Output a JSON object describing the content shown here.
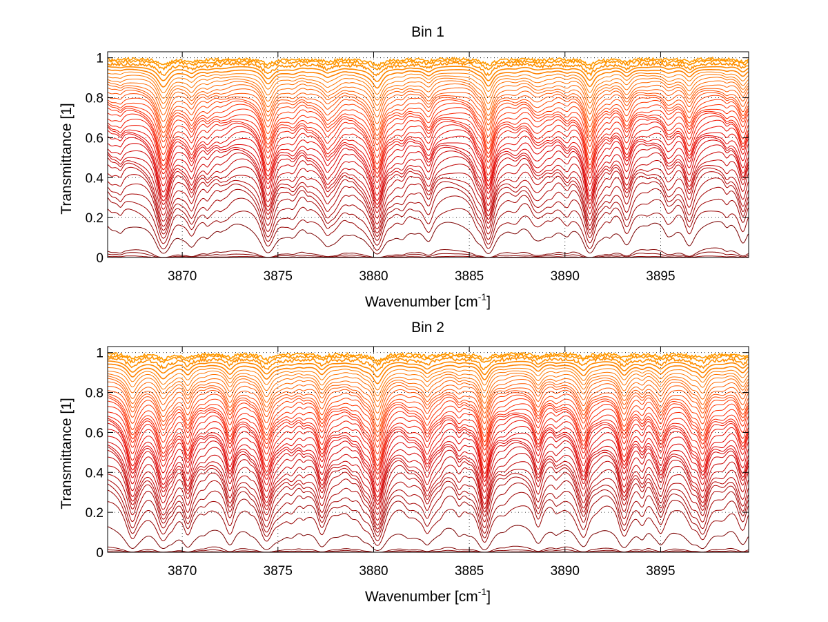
{
  "chart_data": [
    {
      "type": "line",
      "title": "Bin 1",
      "xlabel": "Wavenumber [cm",
      "xlabel_sup": "-1",
      "xlabel_end": "]",
      "ylabel": "Transmittance [1]",
      "xlim": [
        3866.1,
        3899.6
      ],
      "ylim": [
        0,
        1.03
      ],
      "xticks": [
        "3870",
        "3875",
        "3880",
        "3885",
        "3890",
        "3895"
      ],
      "yticks": [
        "0",
        "0.2",
        "0.4",
        "0.6",
        "0.8",
        "1"
      ],
      "grid": "dotted",
      "curves": 40,
      "colormap": [
        "#7a0000",
        "#b00000",
        "#e00000",
        "#ff2a00",
        "#ff6a00",
        "#ff9a00"
      ],
      "absorption_lines": [
        {
          "x": 3869.0,
          "depth": 1.0,
          "width": 0.35
        },
        {
          "x": 3870.5,
          "depth": 0.35,
          "width": 0.25
        },
        {
          "x": 3874.5,
          "depth": 0.8,
          "width": 0.35
        },
        {
          "x": 3877.6,
          "depth": 0.3,
          "width": 0.25
        },
        {
          "x": 3880.2,
          "depth": 0.95,
          "width": 0.35
        },
        {
          "x": 3882.9,
          "depth": 0.3,
          "width": 0.25
        },
        {
          "x": 3886.0,
          "depth": 1.0,
          "width": 0.3
        },
        {
          "x": 3891.3,
          "depth": 1.0,
          "width": 0.3
        },
        {
          "x": 3893.2,
          "depth": 0.35,
          "width": 0.25
        },
        {
          "x": 3896.5,
          "depth": 0.4,
          "width": 0.25
        },
        {
          "x": 3899.3,
          "depth": 0.45,
          "width": 0.25
        }
      ],
      "lowest_curves_y_at_start": [
        0.19,
        0.05,
        0.03,
        0.01
      ]
    },
    {
      "type": "line",
      "title": "Bin 2",
      "xlabel": "Wavenumber [cm",
      "xlabel_sup": "-1",
      "xlabel_end": "]",
      "ylabel": "Transmittance [1]",
      "xlim": [
        3866.1,
        3899.6
      ],
      "ylim": [
        0,
        1.03
      ],
      "xticks": [
        "3870",
        "3875",
        "3880",
        "3885",
        "3890",
        "3895"
      ],
      "yticks": [
        "0",
        "0.2",
        "0.4",
        "0.6",
        "0.8",
        "1"
      ],
      "grid": "dotted",
      "curves": 40,
      "colormap": [
        "#7a0000",
        "#b00000",
        "#e00000",
        "#ff2a00",
        "#ff6a00",
        "#ff9a00"
      ],
      "absorption_lines": [
        {
          "x": 3867.4,
          "depth": 0.7,
          "width": 0.3
        },
        {
          "x": 3869.0,
          "depth": 0.8,
          "width": 0.35
        },
        {
          "x": 3870.3,
          "depth": 0.55,
          "width": 0.25
        },
        {
          "x": 3872.5,
          "depth": 0.5,
          "width": 0.25
        },
        {
          "x": 3874.4,
          "depth": 0.9,
          "width": 0.35
        },
        {
          "x": 3877.3,
          "depth": 0.45,
          "width": 0.25
        },
        {
          "x": 3880.2,
          "depth": 1.0,
          "width": 0.35
        },
        {
          "x": 3882.8,
          "depth": 0.45,
          "width": 0.25
        },
        {
          "x": 3885.8,
          "depth": 0.85,
          "width": 0.3
        },
        {
          "x": 3888.6,
          "depth": 0.45,
          "width": 0.25
        },
        {
          "x": 3891.0,
          "depth": 0.45,
          "width": 0.25
        },
        {
          "x": 3893.1,
          "depth": 0.6,
          "width": 0.25
        },
        {
          "x": 3895.0,
          "depth": 0.5,
          "width": 0.25
        },
        {
          "x": 3897.2,
          "depth": 0.75,
          "width": 0.3
        },
        {
          "x": 3899.3,
          "depth": 0.5,
          "width": 0.25
        }
      ],
      "lowest_curves_y_at_start": [
        0.15,
        0.04,
        0.02,
        0.005
      ]
    }
  ]
}
